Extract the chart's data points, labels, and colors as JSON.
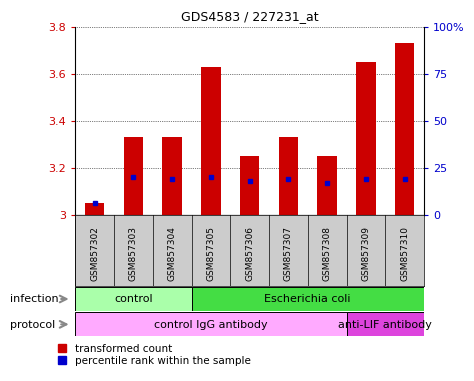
{
  "title": "GDS4583 / 227231_at",
  "samples": [
    "GSM857302",
    "GSM857303",
    "GSM857304",
    "GSM857305",
    "GSM857306",
    "GSM857307",
    "GSM857308",
    "GSM857309",
    "GSM857310"
  ],
  "transformed_counts": [
    3.05,
    3.33,
    3.33,
    3.63,
    3.25,
    3.33,
    3.25,
    3.65,
    3.73
  ],
  "percentile_ranks": [
    6,
    20,
    19,
    20,
    18,
    19,
    17,
    19,
    19
  ],
  "ylim_left": [
    3.0,
    3.8
  ],
  "ylim_right": [
    0,
    100
  ],
  "yticks_left": [
    3.0,
    3.2,
    3.4,
    3.6,
    3.8
  ],
  "yticks_right": [
    0,
    25,
    50,
    75,
    100
  ],
  "ytick_labels_left": [
    "3",
    "3.2",
    "3.4",
    "3.6",
    "3.8"
  ],
  "ytick_labels_right": [
    "0",
    "25",
    "50",
    "75",
    "100%"
  ],
  "infection_groups": [
    {
      "label": "control",
      "start": 0,
      "end": 3,
      "color": "#aaffaa"
    },
    {
      "label": "Escherichia coli",
      "start": 3,
      "end": 9,
      "color": "#44dd44"
    }
  ],
  "protocol_groups": [
    {
      "label": "control IgG antibody",
      "start": 0,
      "end": 7,
      "color": "#ffaaff"
    },
    {
      "label": "anti-LIF antibody",
      "start": 7,
      "end": 9,
      "color": "#dd44dd"
    }
  ],
  "bar_color": "#cc0000",
  "dot_color": "#0000cc",
  "bar_width": 0.5,
  "left_tick_color": "#cc0000",
  "right_tick_color": "#0000cc",
  "legend_red": "transformed count",
  "legend_blue": "percentile rank within the sample",
  "infection_label": "infection",
  "protocol_label": "protocol",
  "sample_bg_color": "#cccccc",
  "arrow_color": "#888888"
}
